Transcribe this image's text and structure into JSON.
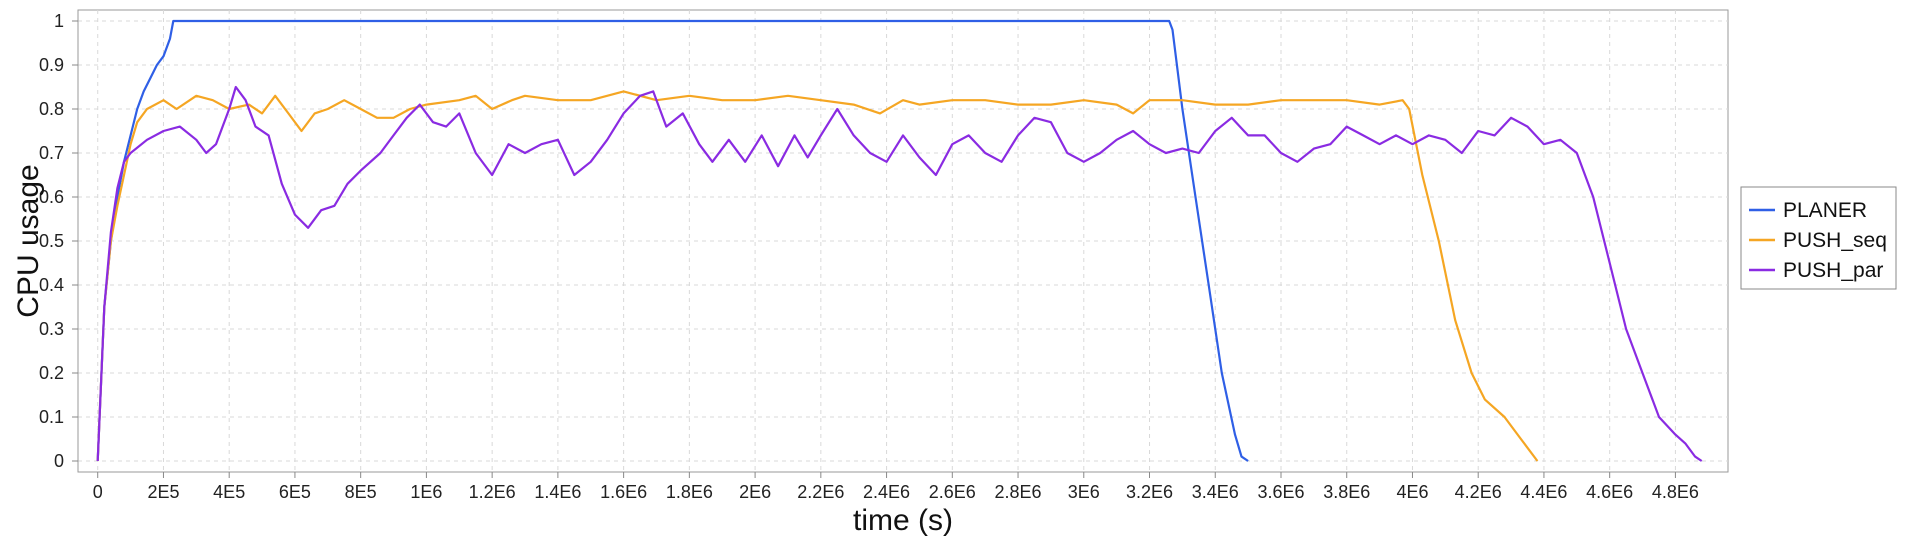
{
  "chart_data": {
    "type": "line",
    "title": "",
    "xlabel": "time (s)",
    "ylabel": "CPU usage",
    "xlim": [
      -60000,
      4960000
    ],
    "ylim": [
      -0.025,
      1.025
    ],
    "grid": true,
    "legend_position": "right",
    "x_ticks": [
      0,
      200000,
      400000,
      600000,
      800000,
      1000000,
      1200000,
      1400000,
      1600000,
      1800000,
      2000000,
      2200000,
      2400000,
      2600000,
      2800000,
      3000000,
      3200000,
      3400000,
      3600000,
      3800000,
      4000000,
      4200000,
      4400000,
      4600000,
      4800000
    ],
    "x_tick_labels": [
      "0",
      "2E5",
      "4E5",
      "6E5",
      "8E5",
      "1E6",
      "1.2E6",
      "1.4E6",
      "1.6E6",
      "1.8E6",
      "2E6",
      "2.2E6",
      "2.4E6",
      "2.6E6",
      "2.8E6",
      "3E6",
      "3.2E6",
      "3.4E6",
      "3.6E6",
      "3.8E6",
      "4E6",
      "4.2E6",
      "4.4E6",
      "4.6E6",
      "4.8E6"
    ],
    "y_ticks": [
      0,
      0.1,
      0.2,
      0.3,
      0.4,
      0.5,
      0.6,
      0.7,
      0.8,
      0.9,
      1
    ],
    "y_tick_labels": [
      "0",
      "0.1",
      "0.2",
      "0.3",
      "0.4",
      "0.5",
      "0.6",
      "0.7",
      "0.8",
      "0.9",
      "1"
    ],
    "series": [
      {
        "name": "PLANER",
        "color": "#2f5fe6",
        "points": [
          [
            0,
            0
          ],
          [
            20000,
            0.35
          ],
          [
            40000,
            0.5
          ],
          [
            60000,
            0.6
          ],
          [
            80000,
            0.68
          ],
          [
            100000,
            0.74
          ],
          [
            120000,
            0.8
          ],
          [
            140000,
            0.84
          ],
          [
            160000,
            0.87
          ],
          [
            180000,
            0.9
          ],
          [
            200000,
            0.92
          ],
          [
            220000,
            0.96
          ],
          [
            230000,
            1
          ],
          [
            1000000,
            1
          ],
          [
            2000000,
            1
          ],
          [
            3000000,
            1
          ],
          [
            3200000,
            1
          ],
          [
            3260000,
            1
          ],
          [
            3270000,
            0.98
          ],
          [
            3300000,
            0.8
          ],
          [
            3340000,
            0.6
          ],
          [
            3380000,
            0.4
          ],
          [
            3420000,
            0.2
          ],
          [
            3460000,
            0.06
          ],
          [
            3480000,
            0.01
          ],
          [
            3500000,
            0
          ]
        ]
      },
      {
        "name": "PUSH_seq",
        "color": "#f5a623",
        "points": [
          [
            0,
            0
          ],
          [
            20000,
            0.35
          ],
          [
            40000,
            0.5
          ],
          [
            60000,
            0.58
          ],
          [
            80000,
            0.65
          ],
          [
            100000,
            0.72
          ],
          [
            120000,
            0.77
          ],
          [
            150000,
            0.8
          ],
          [
            200000,
            0.82
          ],
          [
            240000,
            0.8
          ],
          [
            300000,
            0.83
          ],
          [
            350000,
            0.82
          ],
          [
            400000,
            0.8
          ],
          [
            460000,
            0.81
          ],
          [
            500000,
            0.79
          ],
          [
            540000,
            0.83
          ],
          [
            580000,
            0.79
          ],
          [
            620000,
            0.75
          ],
          [
            660000,
            0.79
          ],
          [
            700000,
            0.8
          ],
          [
            750000,
            0.82
          ],
          [
            800000,
            0.8
          ],
          [
            850000,
            0.78
          ],
          [
            900000,
            0.78
          ],
          [
            950000,
            0.8
          ],
          [
            1000000,
            0.81
          ],
          [
            1100000,
            0.82
          ],
          [
            1150000,
            0.83
          ],
          [
            1200000,
            0.8
          ],
          [
            1260000,
            0.82
          ],
          [
            1300000,
            0.83
          ],
          [
            1400000,
            0.82
          ],
          [
            1500000,
            0.82
          ],
          [
            1600000,
            0.84
          ],
          [
            1700000,
            0.82
          ],
          [
            1800000,
            0.83
          ],
          [
            1900000,
            0.82
          ],
          [
            2000000,
            0.82
          ],
          [
            2100000,
            0.83
          ],
          [
            2200000,
            0.82
          ],
          [
            2300000,
            0.81
          ],
          [
            2380000,
            0.79
          ],
          [
            2450000,
            0.82
          ],
          [
            2500000,
            0.81
          ],
          [
            2600000,
            0.82
          ],
          [
            2700000,
            0.82
          ],
          [
            2800000,
            0.81
          ],
          [
            2900000,
            0.81
          ],
          [
            3000000,
            0.82
          ],
          [
            3100000,
            0.81
          ],
          [
            3150000,
            0.79
          ],
          [
            3200000,
            0.82
          ],
          [
            3300000,
            0.82
          ],
          [
            3400000,
            0.81
          ],
          [
            3500000,
            0.81
          ],
          [
            3600000,
            0.82
          ],
          [
            3700000,
            0.82
          ],
          [
            3800000,
            0.82
          ],
          [
            3900000,
            0.81
          ],
          [
            3970000,
            0.82
          ],
          [
            3990000,
            0.8
          ],
          [
            4030000,
            0.65
          ],
          [
            4080000,
            0.5
          ],
          [
            4130000,
            0.32
          ],
          [
            4180000,
            0.2
          ],
          [
            4220000,
            0.14
          ],
          [
            4280000,
            0.1
          ],
          [
            4330000,
            0.05
          ],
          [
            4380000,
            0
          ]
        ]
      },
      {
        "name": "PUSH_par",
        "color": "#8a2be2",
        "points": [
          [
            0,
            0
          ],
          [
            20000,
            0.35
          ],
          [
            40000,
            0.52
          ],
          [
            60000,
            0.62
          ],
          [
            80000,
            0.68
          ],
          [
            100000,
            0.7
          ],
          [
            150000,
            0.73
          ],
          [
            200000,
            0.75
          ],
          [
            250000,
            0.76
          ],
          [
            300000,
            0.73
          ],
          [
            330000,
            0.7
          ],
          [
            360000,
            0.72
          ],
          [
            400000,
            0.8
          ],
          [
            420000,
            0.85
          ],
          [
            450000,
            0.82
          ],
          [
            480000,
            0.76
          ],
          [
            520000,
            0.74
          ],
          [
            560000,
            0.63
          ],
          [
            600000,
            0.56
          ],
          [
            640000,
            0.53
          ],
          [
            680000,
            0.57
          ],
          [
            720000,
            0.58
          ],
          [
            760000,
            0.63
          ],
          [
            800000,
            0.66
          ],
          [
            860000,
            0.7
          ],
          [
            900000,
            0.74
          ],
          [
            940000,
            0.78
          ],
          [
            980000,
            0.81
          ],
          [
            1020000,
            0.77
          ],
          [
            1060000,
            0.76
          ],
          [
            1100000,
            0.79
          ],
          [
            1150000,
            0.7
          ],
          [
            1200000,
            0.65
          ],
          [
            1250000,
            0.72
          ],
          [
            1300000,
            0.7
          ],
          [
            1350000,
            0.72
          ],
          [
            1400000,
            0.73
          ],
          [
            1450000,
            0.65
          ],
          [
            1500000,
            0.68
          ],
          [
            1550000,
            0.73
          ],
          [
            1600000,
            0.79
          ],
          [
            1650000,
            0.83
          ],
          [
            1690000,
            0.84
          ],
          [
            1730000,
            0.76
          ],
          [
            1780000,
            0.79
          ],
          [
            1830000,
            0.72
          ],
          [
            1870000,
            0.68
          ],
          [
            1920000,
            0.73
          ],
          [
            1970000,
            0.68
          ],
          [
            2020000,
            0.74
          ],
          [
            2070000,
            0.67
          ],
          [
            2120000,
            0.74
          ],
          [
            2160000,
            0.69
          ],
          [
            2200000,
            0.74
          ],
          [
            2250000,
            0.8
          ],
          [
            2300000,
            0.74
          ],
          [
            2350000,
            0.7
          ],
          [
            2400000,
            0.68
          ],
          [
            2450000,
            0.74
          ],
          [
            2500000,
            0.69
          ],
          [
            2550000,
            0.65
          ],
          [
            2600000,
            0.72
          ],
          [
            2650000,
            0.74
          ],
          [
            2700000,
            0.7
          ],
          [
            2750000,
            0.68
          ],
          [
            2800000,
            0.74
          ],
          [
            2850000,
            0.78
          ],
          [
            2900000,
            0.77
          ],
          [
            2950000,
            0.7
          ],
          [
            3000000,
            0.68
          ],
          [
            3050000,
            0.7
          ],
          [
            3100000,
            0.73
          ],
          [
            3150000,
            0.75
          ],
          [
            3200000,
            0.72
          ],
          [
            3250000,
            0.7
          ],
          [
            3300000,
            0.71
          ],
          [
            3350000,
            0.7
          ],
          [
            3400000,
            0.75
          ],
          [
            3450000,
            0.78
          ],
          [
            3500000,
            0.74
          ],
          [
            3550000,
            0.74
          ],
          [
            3600000,
            0.7
          ],
          [
            3650000,
            0.68
          ],
          [
            3700000,
            0.71
          ],
          [
            3750000,
            0.72
          ],
          [
            3800000,
            0.76
          ],
          [
            3850000,
            0.74
          ],
          [
            3900000,
            0.72
          ],
          [
            3950000,
            0.74
          ],
          [
            4000000,
            0.72
          ],
          [
            4050000,
            0.74
          ],
          [
            4100000,
            0.73
          ],
          [
            4150000,
            0.7
          ],
          [
            4200000,
            0.75
          ],
          [
            4250000,
            0.74
          ],
          [
            4300000,
            0.78
          ],
          [
            4350000,
            0.76
          ],
          [
            4400000,
            0.72
          ],
          [
            4450000,
            0.73
          ],
          [
            4500000,
            0.7
          ],
          [
            4550000,
            0.6
          ],
          [
            4600000,
            0.45
          ],
          [
            4650000,
            0.3
          ],
          [
            4700000,
            0.2
          ],
          [
            4750000,
            0.1
          ],
          [
            4800000,
            0.06
          ],
          [
            4830000,
            0.04
          ],
          [
            4860000,
            0.01
          ],
          [
            4880000,
            0
          ]
        ]
      }
    ]
  }
}
